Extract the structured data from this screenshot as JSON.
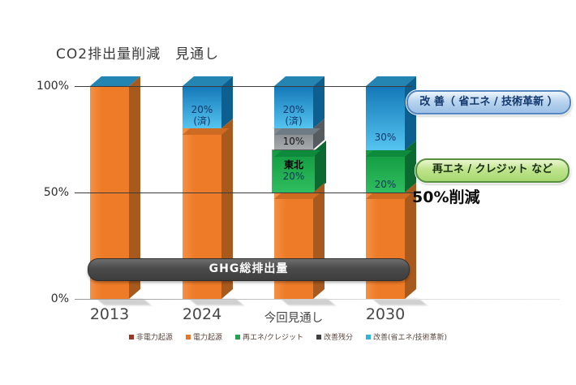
{
  "chart_data": {
    "type": "bar",
    "stacked": true,
    "title": "CO2排出量削減　見通し",
    "unit": "%",
    "ylim": [
      0,
      100
    ],
    "y_tick_labels": [
      "100%",
      "50%",
      "0%"
    ],
    "y_tick_values": [
      100,
      50,
      0
    ],
    "grid": "horizontal",
    "categories": [
      "2013",
      "2024",
      "今回見通し",
      "2030"
    ],
    "bars": [
      {
        "category": "2013",
        "segments": [
          {
            "series": "電力起源・非電力起源(排出量)",
            "type": "emission",
            "value": 100,
            "label": ""
          }
        ]
      },
      {
        "category": "2024",
        "segments": [
          {
            "series": "改善(省エネ/技術革新)",
            "type": "improvement",
            "value": 20,
            "label": "20%\n(済)"
          },
          {
            "series": "電力起源・非電力起源(排出量)",
            "type": "emission",
            "value": 80,
            "label": ""
          }
        ]
      },
      {
        "category": "今回見通し",
        "segments": [
          {
            "series": "改善(省エネ/技術革新)",
            "type": "improvement",
            "value": 20,
            "label": "20%\n(済)"
          },
          {
            "series": "改善残分",
            "type": "remainder",
            "value": 10,
            "label": "10%"
          },
          {
            "series": "再エネ/クレジット",
            "type": "renewable",
            "value": 20,
            "label": "東北\n20%",
            "highlighted": true
          },
          {
            "series": "電力起源・非電力起源(排出量)",
            "type": "emission",
            "value": 50,
            "label": ""
          }
        ]
      },
      {
        "category": "2030",
        "segments": [
          {
            "series": "改善(省エネ/技術革新)",
            "type": "improvement",
            "value": 30,
            "label": "30%"
          },
          {
            "series": "再エネ/クレジット",
            "type": "renewable",
            "value": 20,
            "label": "20%"
          },
          {
            "series": "電力起源・非電力起源(排出量)",
            "type": "emission",
            "value": 50,
            "label": ""
          }
        ]
      }
    ],
    "annotations": {
      "improvement": "改 善（ 省エネ / 技術革新 ）",
      "renewable": "再エネ / クレジット など",
      "reduction": "50%削減",
      "ghg_total": "GHG総排出量"
    },
    "legend_position": "bottom",
    "legend": [
      {
        "label": "非電力起源",
        "color": "#9e3626"
      },
      {
        "label": "電力起源",
        "color": "#e8762a"
      },
      {
        "label": "再エネ/クレジット",
        "color": "#27a050"
      },
      {
        "label": "改善残分",
        "color": "#3f3f3f"
      },
      {
        "label": "改善(省エネ/技術革新)",
        "color": "#30b4e0"
      }
    ],
    "colors": {
      "emission_front": "#ee7b27",
      "emission_front_light": "#f49045",
      "emission_side": "#a85a1e",
      "emission_band": "#cf6a22",
      "improvement_front_dark": "#1478b8",
      "improvement_front_light": "#55c4f0",
      "improvement_side": "#0d5f90",
      "remainder_front_dark": "#7f8488",
      "remainder_front_light": "#a7abae",
      "remainder_side": "#565b5f",
      "remainder_band": "#6f7b84",
      "renewable_front_dark": "#129a40",
      "renewable_front_light": "#2fbd5f",
      "renewable_side": "#0c6a31",
      "renewable_band": "#0e8a3c",
      "bar_top_face": "#2484b2",
      "label_improvement": "#10386b",
      "label_remainder": "#141414",
      "label_renewable_title": "#000000",
      "label_renewable_value": "#0d3a57"
    }
  }
}
